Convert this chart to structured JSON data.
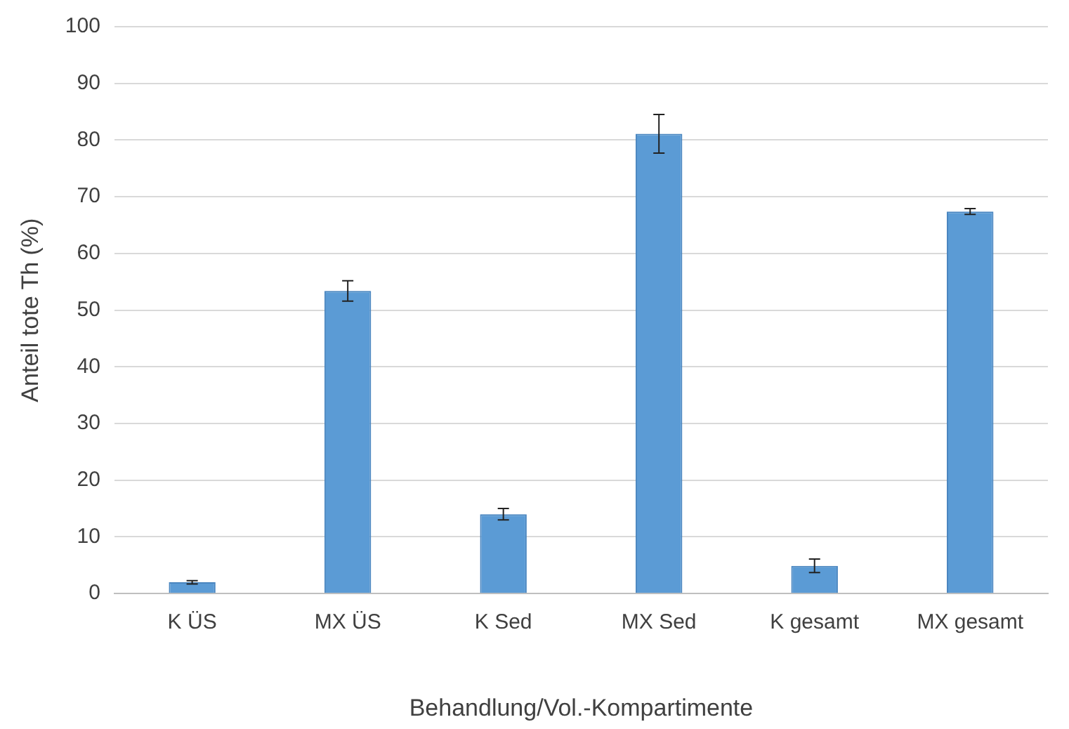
{
  "chart_data": {
    "type": "bar",
    "xlabel": "Behandlung/Vol.-Kompartimente",
    "ylabel": "Anteil tote Th (%)",
    "categories": [
      "K ÜS",
      "MX ÜS",
      "K Sed",
      "MX Sed",
      "K gesamt",
      "MX gesamt"
    ],
    "values": [
      2.0,
      53.4,
      14.0,
      81.1,
      4.9,
      67.4
    ],
    "errors": [
      0.3,
      1.8,
      1.0,
      3.4,
      1.2,
      0.5
    ],
    "color": "#5b9bd5",
    "ylim": [
      0,
      100
    ],
    "yticks": [
      0,
      10,
      20,
      30,
      40,
      50,
      60,
      70,
      80,
      90,
      100
    ],
    "grid": "y",
    "legend": false
  }
}
